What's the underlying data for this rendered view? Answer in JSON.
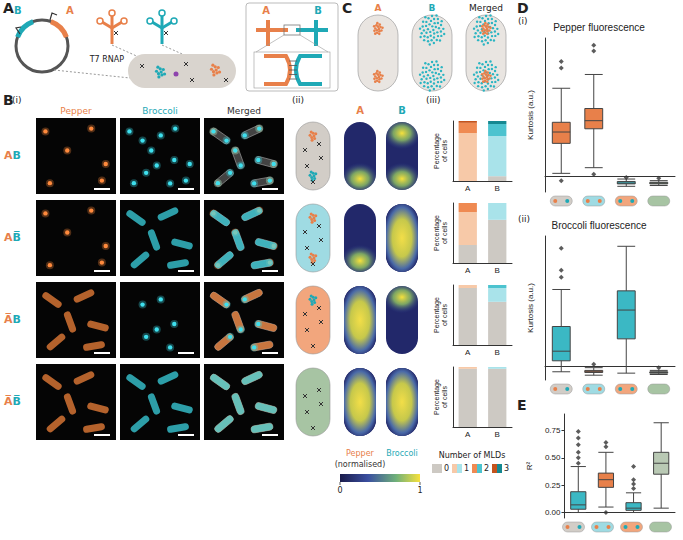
{
  "figure": {
    "panel_letters": [
      "A",
      "B",
      "C",
      "D",
      "E"
    ],
    "A": {
      "plasmid_labels": [
        "B",
        "A"
      ],
      "polymerase": "T7 RNAP",
      "inset_labels": [
        "A",
        "B"
      ]
    },
    "B": {
      "sub_labels": [
        "(i)",
        "(ii)",
        "(iii)"
      ],
      "image_columns": [
        "Pepper",
        "Broccoli",
        "Merged"
      ],
      "rows": [
        "AB",
        "AB̅",
        "A̅B",
        "A̅B̅"
      ],
      "heatmap_columns": [
        "A",
        "B"
      ],
      "heatmap_labels": [
        "Pepper",
        "Broccoli"
      ],
      "colorbar": {
        "note": "(normalised)",
        "range": [
          0,
          1
        ],
        "ticks": [
          0,
          1
        ]
      },
      "legend_title": "Number of MLDs"
    },
    "C": {
      "labels": [
        "A",
        "B",
        "Merged"
      ]
    },
    "D": {
      "sub_labels": [
        "(i)",
        "(ii)"
      ]
    }
  },
  "chart_data": [
    {
      "type": "bar",
      "stacked": true,
      "categories": [
        "A",
        "B"
      ],
      "ylabel": "Percentage of cells",
      "ylim": [
        0,
        100
      ],
      "tick_labels": "x",
      "grid": false,
      "series": [
        {
          "name": "0",
          "colors": [
            "#cdc9c3",
            "#cdc9c3"
          ],
          "values": [
            0,
            8
          ]
        },
        {
          "name": "1",
          "colors": [
            "#f7c9a8",
            "#a9e3ea"
          ],
          "values": [
            80,
            67
          ]
        },
        {
          "name": "2",
          "colors": [
            "#ef8a52",
            "#4cc3cf"
          ],
          "values": [
            17,
            20
          ]
        },
        {
          "name": "3",
          "colors": [
            "#c4531d",
            "#158891"
          ],
          "values": [
            3,
            5
          ]
        }
      ]
    },
    {
      "type": "bar",
      "stacked": true,
      "categories": [
        "A",
        "B"
      ],
      "ylabel": "Percentage of cells",
      "ylim": [
        0,
        100
      ],
      "tick_labels": "x",
      "grid": false,
      "series": [
        {
          "name": "0",
          "colors": [
            "#cdc9c3",
            "#cdc9c3"
          ],
          "values": [
            30,
            72
          ]
        },
        {
          "name": "1",
          "colors": [
            "#f7c9a8",
            "#a9e3ea"
          ],
          "values": [
            55,
            28
          ]
        },
        {
          "name": "2",
          "colors": [
            "#ef8a52",
            "#4cc3cf"
          ],
          "values": [
            15,
            0
          ]
        },
        {
          "name": "3",
          "colors": [
            "#c4531d",
            "#158891"
          ],
          "values": [
            0,
            0
          ]
        }
      ]
    },
    {
      "type": "bar",
      "stacked": true,
      "categories": [
        "A",
        "B"
      ],
      "ylabel": "Percentage of cells",
      "ylim": [
        0,
        100
      ],
      "tick_labels": "x",
      "grid": false,
      "series": [
        {
          "name": "0",
          "colors": [
            "#cdc9c3",
            "#cdc9c3"
          ],
          "values": [
            95,
            72
          ]
        },
        {
          "name": "1",
          "colors": [
            "#f7c9a8",
            "#a9e3ea"
          ],
          "values": [
            5,
            23
          ]
        },
        {
          "name": "2",
          "colors": [
            "#ef8a52",
            "#4cc3cf"
          ],
          "values": [
            0,
            5
          ]
        },
        {
          "name": "3",
          "colors": [
            "#c4531d",
            "#158891"
          ],
          "values": [
            0,
            0
          ]
        }
      ]
    },
    {
      "type": "bar",
      "stacked": true,
      "categories": [
        "A",
        "B"
      ],
      "ylabel": "Percentage of cells",
      "ylim": [
        0,
        100
      ],
      "tick_labels": "x",
      "grid": false,
      "legend": "bottom",
      "series": [
        {
          "name": "0",
          "colors": [
            "#cdc9c3",
            "#cdc9c3"
          ],
          "values": [
            97,
            97
          ]
        },
        {
          "name": "1",
          "colors": [
            "#f7c9a8",
            "#a9e3ea"
          ],
          "values": [
            3,
            3
          ]
        },
        {
          "name": "2",
          "colors": [
            "#ef8a52",
            "#4cc3cf"
          ],
          "values": [
            0,
            0
          ]
        },
        {
          "name": "3",
          "colors": [
            "#c4531d",
            "#158891"
          ],
          "values": [
            0,
            0
          ]
        }
      ]
    },
    {
      "type": "boxplot",
      "title": "Pepper fluorescence",
      "ylabel": "Kurtosis (a.u.)",
      "categories": [
        null,
        null,
        null,
        null
      ],
      "ylim": [
        -2,
        17
      ],
      "tick_labels": false,
      "grid": false,
      "marker": "diamond",
      "colors": [
        "#e8804a",
        "#e8804a",
        "#3bb8c4",
        "#8faa8c"
      ],
      "boxes": [
        [
          0.3,
          4.0,
          5.4,
          6.6,
          10.8
        ],
        [
          1.0,
          5.8,
          6.8,
          8.3,
          12.5
        ],
        [
          -1.3,
          -1.0,
          -0.9,
          -0.7,
          -0.4
        ],
        [
          -1.2,
          -1.0,
          -0.9,
          -0.8,
          -0.6
        ]
      ],
      "outliers": [
        [
          0,
          13.3
        ],
        [
          0,
          14.1
        ],
        [
          0,
          -0.6
        ],
        [
          1,
          15.4
        ],
        [
          1,
          16.1
        ],
        [
          1,
          0.2
        ],
        [
          2,
          -0.2
        ],
        [
          3,
          -0.3
        ]
      ]
    },
    {
      "type": "boxplot",
      "title": "Broccoli fluorescence",
      "ylabel": "Kurtosis (a.u.)",
      "categories": [
        null,
        null,
        null,
        null
      ],
      "ylim": [
        -2,
        19
      ],
      "tick_labels": false,
      "grid": false,
      "marker": "diamond",
      "colors": [
        "#3bb8c4",
        "#e8804a",
        "#3bb8c4",
        "#8faa8c"
      ],
      "boxes": [
        [
          -0.8,
          0.8,
          2.2,
          5.8,
          11.2
        ],
        [
          -1.3,
          -0.9,
          -0.8,
          -0.6,
          -0.2
        ],
        [
          -1.0,
          4.0,
          8.2,
          11.0,
          17.5
        ],
        [
          -1.2,
          -1.0,
          -0.9,
          -0.8,
          -0.6
        ]
      ],
      "outliers": [
        [
          0,
          13.0
        ],
        [
          0,
          14.0
        ],
        [
          0,
          17.2
        ],
        [
          1,
          0.3
        ],
        [
          3,
          -0.2
        ]
      ]
    },
    {
      "type": "boxplot",
      "ylabel": "R²",
      "categories": [
        null,
        null,
        null,
        null
      ],
      "ylim": [
        -0.05,
        0.9
      ],
      "tick_labels": "y",
      "grid": false,
      "marker": "diamond",
      "yticks": [
        {
          "value": 0,
          "label": "0.00"
        },
        {
          "value": 0.25,
          "label": "0.25"
        },
        {
          "value": 0.5,
          "label": "0.50"
        },
        {
          "value": 0.75,
          "label": "0.75"
        }
      ],
      "colors": [
        "#3bb8c4",
        "#e8804a",
        "#3bb8c4",
        "#b9c9b4"
      ],
      "boxes": [
        [
          0.0,
          0.03,
          0.07,
          0.19,
          0.42
        ],
        [
          0.05,
          0.23,
          0.3,
          0.36,
          0.55
        ],
        [
          0.0,
          0.02,
          0.04,
          0.09,
          0.18
        ],
        [
          0.04,
          0.35,
          0.45,
          0.55,
          0.82
        ]
      ],
      "outliers": [
        [
          0,
          0.45
        ],
        [
          0,
          0.5
        ],
        [
          0,
          0.55
        ],
        [
          0,
          0.62
        ],
        [
          0,
          0.68
        ],
        [
          0,
          0.74
        ],
        [
          1,
          0.6
        ],
        [
          1,
          0.64
        ],
        [
          1,
          0.0
        ],
        [
          2,
          0.22
        ],
        [
          2,
          0.26
        ],
        [
          2,
          0.3
        ],
        [
          2,
          0.42
        ]
      ]
    }
  ]
}
